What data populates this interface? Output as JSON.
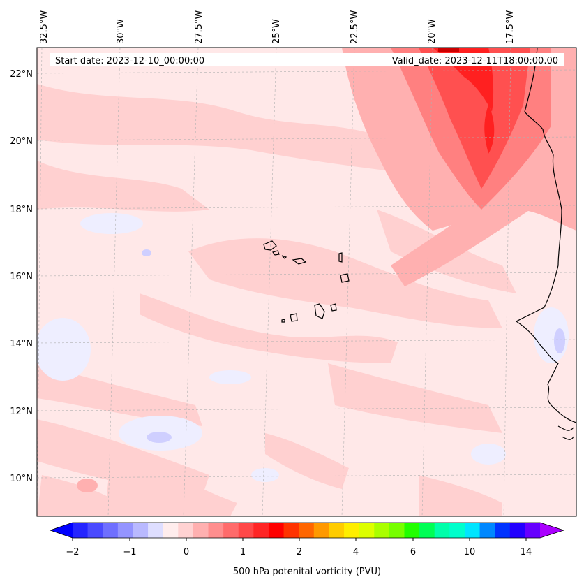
{
  "header": {
    "start_date": "Start date: 2023-12-10_00:00:00",
    "valid_date": "Valid_date: 2023-12-11T18:00:00.00"
  },
  "axes": {
    "lon_labels": [
      "32.5°W",
      "30°W",
      "27.5°W",
      "25°W",
      "22.5°W",
      "20°W",
      "17.5°W"
    ],
    "lat_labels": [
      "22°N",
      "20°N",
      "18°N",
      "16°N",
      "14°N",
      "12°N",
      "10°N"
    ]
  },
  "colorbar": {
    "label": "500 hPa potenital vorticity (PVU)",
    "ticks": [
      "−2",
      "−1",
      "0",
      "1",
      "2",
      "4",
      "6",
      "10",
      "14"
    ],
    "colors": [
      "#0000ff",
      "#2525ff",
      "#4a4aff",
      "#6f6fff",
      "#9494ff",
      "#b9b9ff",
      "#dedeff",
      "#ffeded",
      "#ffd2d2",
      "#ffb0b0",
      "#ff8e8e",
      "#ff6b6b",
      "#ff4848",
      "#ff2525",
      "#ff0000",
      "#ff3300",
      "#ff6600",
      "#ff9900",
      "#ffcc00",
      "#ffee00",
      "#ddff00",
      "#aaff00",
      "#77ff00",
      "#22ff00",
      "#00ff55",
      "#00ffaa",
      "#00ffcc",
      "#00e5ff",
      "#0088ff",
      "#0033ff",
      "#2200ff",
      "#6600ff",
      "#aa00ff"
    ]
  }
}
